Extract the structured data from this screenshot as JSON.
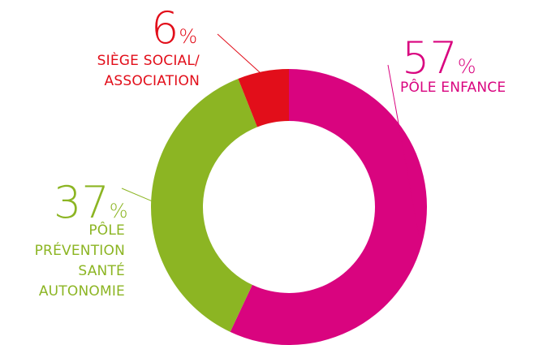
{
  "chart_data": {
    "type": "pie",
    "donut": true,
    "title": "",
    "slices": [
      {
        "value": 57,
        "value_text": "57",
        "percent_sign": "%",
        "label_lines": [
          "PÔLE ENFANCE"
        ],
        "color": "#d9047f"
      },
      {
        "value": 37,
        "value_text": "37",
        "percent_sign": "%",
        "label_lines": [
          "PÔLE",
          "PRÉVENTION",
          "SANTÉ",
          "AUTONOMIE"
        ],
        "color": "#8cb523"
      },
      {
        "value": 6,
        "value_text": "6",
        "percent_sign": "%",
        "label_lines": [
          "SIÈGE SOCIAL/",
          "ASSOCIATION"
        ],
        "color": "#e20e1a"
      }
    ]
  }
}
